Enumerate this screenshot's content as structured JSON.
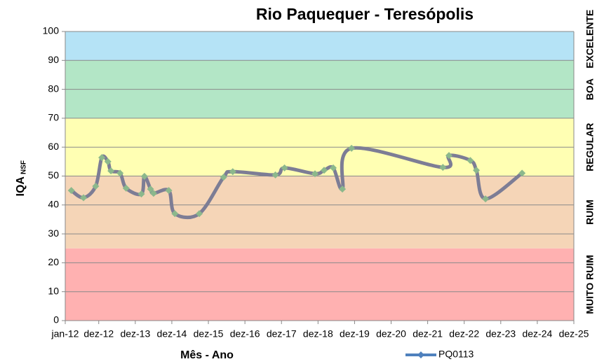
{
  "chart_data": {
    "type": "line",
    "title": "Rio Paquequer - Teresópolis",
    "x_label": "Mês - Ano",
    "y_label": "IQA",
    "y_label_sub": "NSF",
    "xlim": [
      0,
      167
    ],
    "xticks": [
      {
        "value": 0,
        "label": "jan-12"
      },
      {
        "value": 11,
        "label": "dez-12"
      },
      {
        "value": 23,
        "label": "dez-13"
      },
      {
        "value": 35,
        "label": "dez-14"
      },
      {
        "value": 47,
        "label": "dez-15"
      },
      {
        "value": 59,
        "label": "dez-16"
      },
      {
        "value": 71,
        "label": "dez-17"
      },
      {
        "value": 83,
        "label": "dez-18"
      },
      {
        "value": 95,
        "label": "dez-19"
      },
      {
        "value": 107,
        "label": "dez-20"
      },
      {
        "value": 119,
        "label": "dez-21"
      },
      {
        "value": 131,
        "label": "dez-22"
      },
      {
        "value": 143,
        "label": "dez-23"
      },
      {
        "value": 155,
        "label": "dez-24"
      },
      {
        "value": 167,
        "label": "dez-25"
      }
    ],
    "ylim": [
      0,
      100
    ],
    "yticks": [
      0,
      10,
      20,
      30,
      40,
      50,
      60,
      70,
      80,
      90,
      100
    ],
    "grid": true,
    "bands": [
      {
        "from": 0,
        "to": 25,
        "label": "MUITO RUIM",
        "color": "#ffb1b1"
      },
      {
        "from": 25,
        "to": 50,
        "label": "RUIM",
        "color": "#f5d5b7"
      },
      {
        "from": 50,
        "to": 70,
        "label": "REGULAR",
        "color": "#ffffb3"
      },
      {
        "from": 70,
        "to": 90,
        "label": "BOA",
        "color": "#b3e6c6"
      },
      {
        "from": 90,
        "to": 100,
        "label": "EXCELENTE",
        "color": "#b5e3f6"
      }
    ],
    "legend_position": "bottom",
    "legend_color": "#4f81bd",
    "series": [
      {
        "name": "PQ0113",
        "color": "#7d7d95",
        "marker_color": "#8cb88c",
        "x": [
          2,
          6,
          10,
          12,
          14,
          15,
          18,
          20,
          25,
          26,
          28,
          29,
          34,
          36,
          44,
          52,
          55,
          69,
          72,
          82,
          85,
          88,
          91,
          94,
          124,
          126,
          133,
          135,
          138,
          150
        ],
        "values": [
          45,
          42.5,
          46.5,
          56.4,
          55,
          51.8,
          51,
          45.8,
          43.8,
          49.9,
          45.5,
          44,
          45,
          37,
          37,
          49.6,
          51.5,
          50.4,
          52.8,
          50.8,
          52,
          52.8,
          45.5,
          59.6,
          53,
          57.1,
          55.4,
          52,
          42.1,
          51
        ]
      }
    ]
  }
}
